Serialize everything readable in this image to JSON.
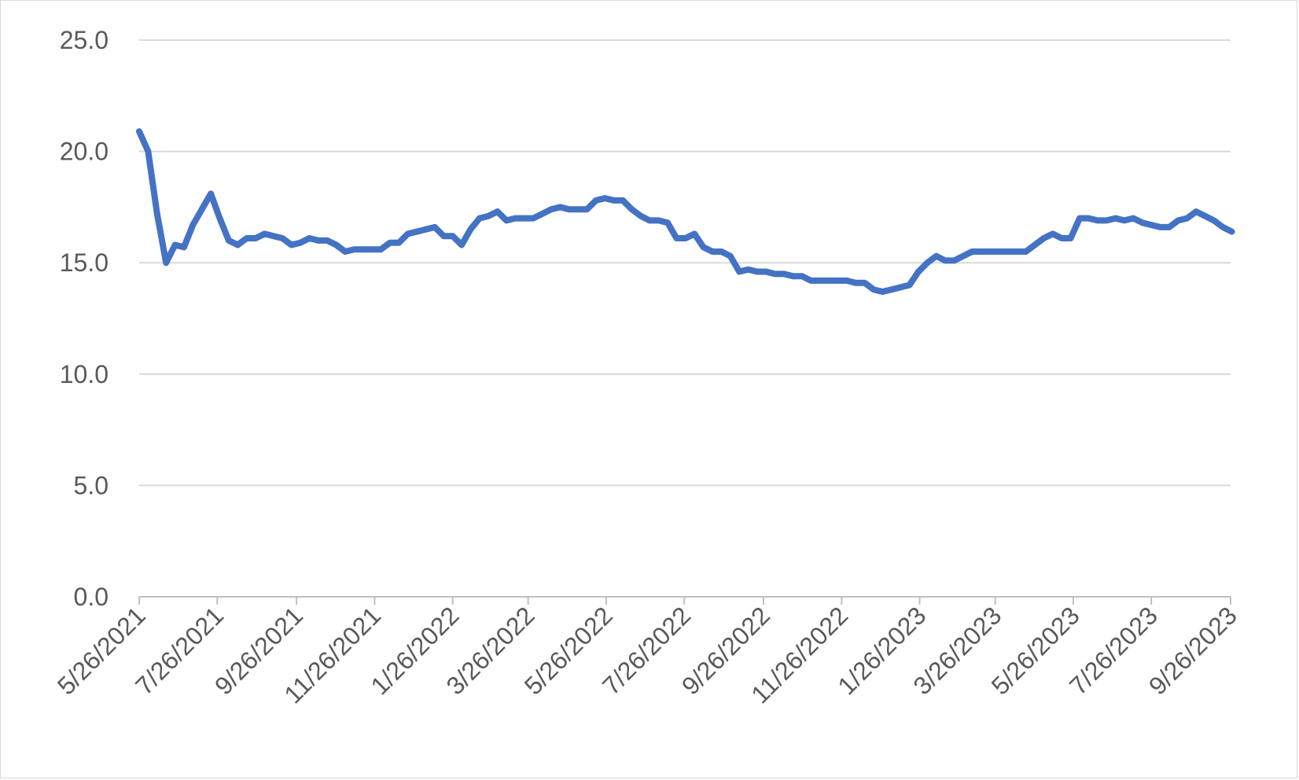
{
  "chart_data": {
    "type": "line",
    "title": "",
    "xlabel": "",
    "ylabel": "",
    "ylim": [
      0,
      25
    ],
    "y_ticks": [
      "0.0",
      "5.0",
      "10.0",
      "15.0",
      "20.0",
      "25.0"
    ],
    "x_tick_labels": [
      "5/26/2021",
      "7/26/2021",
      "9/26/2021",
      "11/26/2021",
      "1/26/2022",
      "3/26/2022",
      "5/26/2022",
      "7/26/2022",
      "9/26/2022",
      "11/26/2022",
      "1/26/2023",
      "3/26/2023",
      "5/26/2023",
      "7/26/2023",
      "9/26/2023"
    ],
    "x_range": [
      "2021-05-26",
      "2023-09-26"
    ],
    "grid": true,
    "legend": "none",
    "series_color": "#4472c4",
    "series": [
      {
        "points": [
          [
            "2021-05-26",
            20.9
          ],
          [
            "2021-06-02",
            20.0
          ],
          [
            "2021-06-09",
            17.2
          ],
          [
            "2021-06-16",
            15.0
          ],
          [
            "2021-06-23",
            15.8
          ],
          [
            "2021-06-30",
            15.7
          ],
          [
            "2021-07-07",
            16.7
          ],
          [
            "2021-07-14",
            17.4
          ],
          [
            "2021-07-21",
            18.1
          ],
          [
            "2021-07-28",
            17.0
          ],
          [
            "2021-08-04",
            16.0
          ],
          [
            "2021-08-11",
            15.8
          ],
          [
            "2021-08-18",
            16.1
          ],
          [
            "2021-08-25",
            16.1
          ],
          [
            "2021-09-01",
            16.3
          ],
          [
            "2021-09-08",
            16.2
          ],
          [
            "2021-09-15",
            16.1
          ],
          [
            "2021-09-22",
            15.8
          ],
          [
            "2021-09-29",
            15.9
          ],
          [
            "2021-10-06",
            16.1
          ],
          [
            "2021-10-13",
            16.0
          ],
          [
            "2021-10-20",
            16.0
          ],
          [
            "2021-10-27",
            15.8
          ],
          [
            "2021-11-03",
            15.5
          ],
          [
            "2021-11-10",
            15.6
          ],
          [
            "2021-11-17",
            15.6
          ],
          [
            "2021-11-24",
            15.6
          ],
          [
            "2021-12-01",
            15.6
          ],
          [
            "2021-12-08",
            15.9
          ],
          [
            "2021-12-15",
            15.9
          ],
          [
            "2021-12-22",
            16.3
          ],
          [
            "2021-12-29",
            16.4
          ],
          [
            "2022-01-05",
            16.5
          ],
          [
            "2022-01-12",
            16.6
          ],
          [
            "2022-01-19",
            16.2
          ],
          [
            "2022-01-26",
            16.2
          ],
          [
            "2022-02-02",
            15.8
          ],
          [
            "2022-02-09",
            16.5
          ],
          [
            "2022-02-16",
            17.0
          ],
          [
            "2022-02-23",
            17.1
          ],
          [
            "2022-03-02",
            17.3
          ],
          [
            "2022-03-09",
            16.9
          ],
          [
            "2022-03-16",
            17.0
          ],
          [
            "2022-03-23",
            17.0
          ],
          [
            "2022-03-30",
            17.0
          ],
          [
            "2022-04-06",
            17.2
          ],
          [
            "2022-04-13",
            17.4
          ],
          [
            "2022-04-20",
            17.5
          ],
          [
            "2022-04-27",
            17.4
          ],
          [
            "2022-05-04",
            17.4
          ],
          [
            "2022-05-11",
            17.4
          ],
          [
            "2022-05-18",
            17.8
          ],
          [
            "2022-05-25",
            17.9
          ],
          [
            "2022-06-01",
            17.8
          ],
          [
            "2022-06-08",
            17.8
          ],
          [
            "2022-06-15",
            17.4
          ],
          [
            "2022-06-22",
            17.1
          ],
          [
            "2022-06-29",
            16.9
          ],
          [
            "2022-07-06",
            16.9
          ],
          [
            "2022-07-13",
            16.8
          ],
          [
            "2022-07-20",
            16.1
          ],
          [
            "2022-07-27",
            16.1
          ],
          [
            "2022-08-03",
            16.3
          ],
          [
            "2022-08-10",
            15.7
          ],
          [
            "2022-08-17",
            15.5
          ],
          [
            "2022-08-24",
            15.5
          ],
          [
            "2022-08-31",
            15.3
          ],
          [
            "2022-09-07",
            14.6
          ],
          [
            "2022-09-14",
            14.7
          ],
          [
            "2022-09-21",
            14.6
          ],
          [
            "2022-09-28",
            14.6
          ],
          [
            "2022-10-05",
            14.5
          ],
          [
            "2022-10-12",
            14.5
          ],
          [
            "2022-10-19",
            14.4
          ],
          [
            "2022-10-26",
            14.4
          ],
          [
            "2022-11-02",
            14.2
          ],
          [
            "2022-11-09",
            14.2
          ],
          [
            "2022-11-16",
            14.2
          ],
          [
            "2022-11-23",
            14.2
          ],
          [
            "2022-11-30",
            14.2
          ],
          [
            "2022-12-07",
            14.1
          ],
          [
            "2022-12-14",
            14.1
          ],
          [
            "2022-12-21",
            13.8
          ],
          [
            "2022-12-28",
            13.7
          ],
          [
            "2023-01-04",
            13.8
          ],
          [
            "2023-01-11",
            13.9
          ],
          [
            "2023-01-18",
            14.0
          ],
          [
            "2023-01-25",
            14.6
          ],
          [
            "2023-02-01",
            15.0
          ],
          [
            "2023-02-08",
            15.3
          ],
          [
            "2023-02-15",
            15.1
          ],
          [
            "2023-02-22",
            15.1
          ],
          [
            "2023-03-01",
            15.3
          ],
          [
            "2023-03-08",
            15.5
          ],
          [
            "2023-03-15",
            15.5
          ],
          [
            "2023-03-22",
            15.5
          ],
          [
            "2023-03-29",
            15.5
          ],
          [
            "2023-04-05",
            15.5
          ],
          [
            "2023-04-12",
            15.5
          ],
          [
            "2023-04-19",
            15.5
          ],
          [
            "2023-04-26",
            15.8
          ],
          [
            "2023-05-03",
            16.1
          ],
          [
            "2023-05-10",
            16.3
          ],
          [
            "2023-05-17",
            16.1
          ],
          [
            "2023-05-24",
            16.1
          ],
          [
            "2023-05-31",
            17.0
          ],
          [
            "2023-06-07",
            17.0
          ],
          [
            "2023-06-14",
            16.9
          ],
          [
            "2023-06-21",
            16.9
          ],
          [
            "2023-06-28",
            17.0
          ],
          [
            "2023-07-05",
            16.9
          ],
          [
            "2023-07-12",
            17.0
          ],
          [
            "2023-07-19",
            16.8
          ],
          [
            "2023-07-26",
            16.7
          ],
          [
            "2023-08-02",
            16.6
          ],
          [
            "2023-08-09",
            16.6
          ],
          [
            "2023-08-16",
            16.9
          ],
          [
            "2023-08-23",
            17.0
          ],
          [
            "2023-08-30",
            17.3
          ],
          [
            "2023-09-06",
            17.1
          ],
          [
            "2023-09-13",
            16.9
          ],
          [
            "2023-09-20",
            16.6
          ],
          [
            "2023-09-27",
            16.4
          ]
        ]
      }
    ]
  }
}
